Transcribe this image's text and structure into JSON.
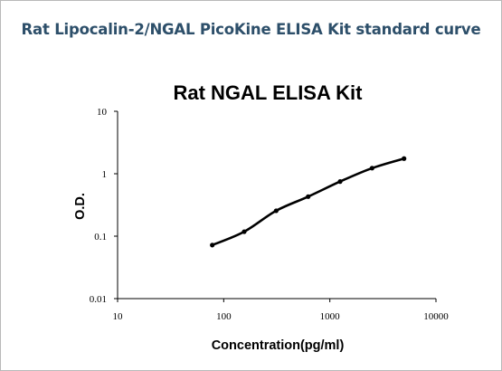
{
  "header": {
    "title": "Rat Lipocalin-2/NGAL PicoKine ELISA Kit standard curve"
  },
  "chart_data": {
    "type": "line",
    "title": "Rat NGAL ELISA Kit",
    "xlabel": "Concentration(pg/ml)",
    "ylabel": "O.D.",
    "xscale": "log",
    "yscale": "log",
    "xlim": [
      10,
      10000
    ],
    "ylim": [
      0.01,
      10
    ],
    "x_ticks": [
      "10",
      "100",
      "1000",
      "10000"
    ],
    "y_ticks": [
      "0.01",
      "0.1",
      "1",
      "10"
    ],
    "grid": false,
    "legend": "none",
    "line_color": "#000000",
    "series": [
      {
        "x": [
          78,
          156,
          312,
          625,
          1250,
          2500,
          5000
        ],
        "y": [
          0.072,
          0.118,
          0.255,
          0.43,
          0.75,
          1.23,
          1.75
        ]
      }
    ]
  }
}
